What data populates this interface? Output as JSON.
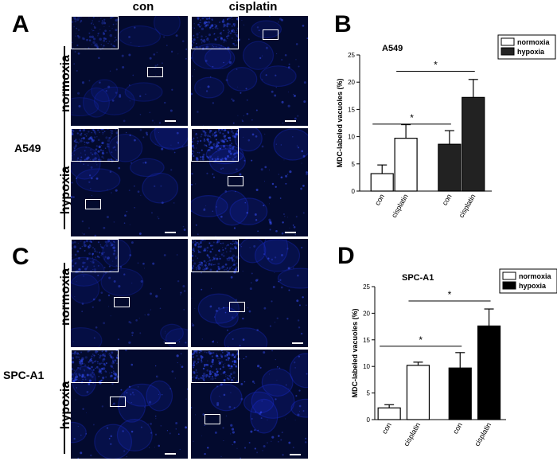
{
  "panels": {
    "a": "A",
    "b": "B",
    "c": "C",
    "d": "D"
  },
  "columns": {
    "con": "con",
    "cisplatin": "cisplatin"
  },
  "rows": {
    "normoxia": "normoxia",
    "hypoxia": "hypoxia"
  },
  "cell_lines": {
    "top": "A549",
    "bottom": "SPC-A1"
  },
  "colors": {
    "micrograph_bg": "#030a2e",
    "stain": "#1b2fd8",
    "normoxia_bar": "#ffffff",
    "hypoxia_bar_b": "#222222",
    "hypoxia_bar_d": "#000000"
  },
  "chart_data": [
    {
      "type": "bar",
      "title": "A549",
      "ylabel": "MDC-labeled vacuoles (%)",
      "ylim": [
        0,
        25
      ],
      "yticks": [
        0,
        5,
        10,
        15,
        20,
        25
      ],
      "categories": [
        "con",
        "cisplatin",
        "con",
        "cisplatin"
      ],
      "values": [
        3.2,
        9.7,
        8.6,
        17.2
      ],
      "errors": [
        1.6,
        2.5,
        2.5,
        3.3
      ],
      "condition": [
        "normoxia",
        "normoxia",
        "hypoxia",
        "hypoxia"
      ],
      "legend": [
        "normoxia",
        "hypoxia"
      ],
      "legend_position": "top-right",
      "significance": [
        {
          "from": 0,
          "to": 2,
          "label": "*"
        },
        {
          "from": 1,
          "to": 3,
          "label": "*"
        }
      ]
    },
    {
      "type": "bar",
      "title": "SPC-A1",
      "ylabel": "MDC-labeled vacuoles (%)",
      "ylim": [
        0,
        25
      ],
      "yticks": [
        0,
        5,
        10,
        15,
        20,
        25
      ],
      "categories": [
        "con",
        "cisplatin",
        "con",
        "cisplatin"
      ],
      "values": [
        2.2,
        10.2,
        9.7,
        17.6
      ],
      "errors": [
        0.6,
        0.6,
        2.9,
        3.2
      ],
      "condition": [
        "normoxia",
        "normoxia",
        "hypoxia",
        "hypoxia"
      ],
      "legend": [
        "normoxia",
        "hypoxia"
      ],
      "legend_position": "top-right",
      "significance": [
        {
          "from": 0,
          "to": 2,
          "label": "*"
        },
        {
          "from": 1,
          "to": 3,
          "label": "*"
        }
      ]
    }
  ]
}
